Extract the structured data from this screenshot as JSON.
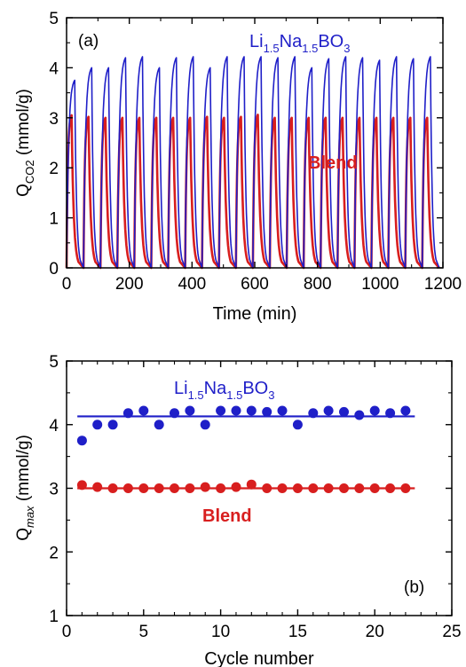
{
  "colors": {
    "blue": "#1f1fc8",
    "red": "#d81e1e",
    "axis": "#000000"
  },
  "chart_data": [
    {
      "type": "line",
      "panel_label": "(a)",
      "xlabel": "Time (min)",
      "ylabel": {
        "main": "Q",
        "sub": "CO2",
        "rest": " (mmol/g)"
      },
      "xlim": [
        0,
        1200
      ],
      "ylim": [
        0,
        5
      ],
      "xticks": [
        "0",
        "200",
        "400",
        "600",
        "800",
        "1000",
        "1200"
      ],
      "yticks": [
        "0",
        "1",
        "2",
        "3",
        "4",
        "5"
      ],
      "cycle_period_min": 54,
      "series": [
        {
          "name": "Li1.5Na1.5BO3",
          "label": {
            "a": "Li",
            "s1": "1.5",
            "b": "Na",
            "s2": "1.5",
            "c": "BO",
            "s3": "3"
          },
          "color": "blue",
          "cycle_peaks": [
            3.75,
            4.0,
            4.0,
            4.2,
            4.22,
            4.0,
            4.2,
            4.22,
            4.0,
            4.22,
            4.22,
            4.22,
            4.2,
            4.22,
            4.0,
            4.18,
            4.22,
            4.2,
            4.15,
            4.22,
            4.18,
            4.22
          ]
        },
        {
          "name": "Blend",
          "label": "Blend",
          "color": "red",
          "cycle_peaks": [
            3.05,
            3.02,
            3.0,
            3.0,
            3.0,
            3.0,
            3.0,
            3.0,
            3.02,
            3.0,
            3.02,
            3.06,
            3.0,
            3.0,
            3.0,
            3.0,
            3.0,
            3.0,
            3.0,
            3.0,
            3.0,
            3.0
          ]
        }
      ]
    },
    {
      "type": "scatter",
      "panel_label": "(b)",
      "xlabel": "Cycle number",
      "ylabel": {
        "main": "Q",
        "sub": "max",
        "rest": " (mmol/g)"
      },
      "xlim": [
        0,
        25
      ],
      "ylim": [
        1,
        5
      ],
      "xticks": [
        "0",
        "5",
        "10",
        "15",
        "20",
        "25"
      ],
      "yticks": [
        "1",
        "2",
        "3",
        "4",
        "5"
      ],
      "x": [
        1,
        2,
        3,
        4,
        5,
        6,
        7,
        8,
        9,
        10,
        11,
        12,
        13,
        14,
        15,
        16,
        17,
        18,
        19,
        20,
        21,
        22
      ],
      "series": [
        {
          "name": "Li1.5Na1.5BO3",
          "label": {
            "a": "Li",
            "s1": "1.5",
            "b": "Na",
            "s2": "1.5",
            "c": "BO",
            "s3": "3"
          },
          "color": "blue",
          "values": [
            3.75,
            4.0,
            4.0,
            4.18,
            4.22,
            4.0,
            4.18,
            4.22,
            4.0,
            4.22,
            4.22,
            4.22,
            4.2,
            4.22,
            4.0,
            4.18,
            4.22,
            4.2,
            4.15,
            4.22,
            4.18,
            4.22
          ],
          "mean_line": 4.13
        },
        {
          "name": "Blend",
          "label": "Blend",
          "color": "red",
          "values": [
            3.05,
            3.02,
            3.0,
            3.0,
            3.0,
            3.0,
            3.0,
            3.0,
            3.02,
            3.0,
            3.02,
            3.06,
            3.0,
            3.0,
            3.0,
            3.0,
            3.0,
            3.0,
            3.0,
            3.0,
            3.0,
            3.0
          ],
          "mean_line": 3.0
        }
      ]
    }
  ]
}
